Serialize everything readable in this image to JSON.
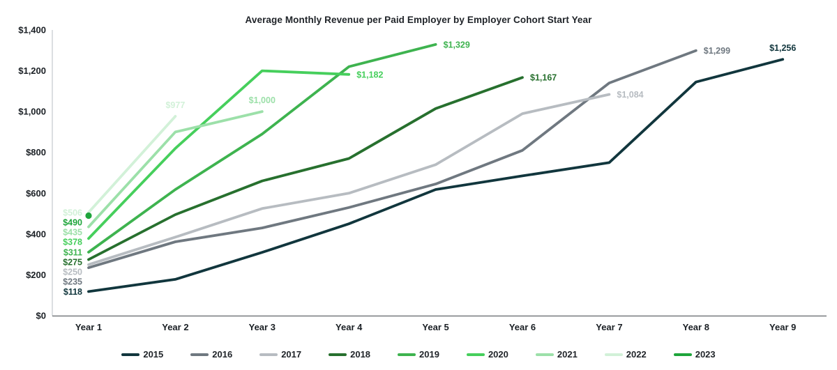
{
  "chart_data": {
    "type": "line",
    "title": "Average Monthly Revenue per Paid Employer by Employer Cohort Start Year",
    "categories": [
      "Year 1",
      "Year 2",
      "Year 3",
      "Year 4",
      "Year 5",
      "Year 6",
      "Year 7",
      "Year 8",
      "Year 9"
    ],
    "xlabel": "",
    "ylabel": "",
    "ylim": [
      0,
      1400
    ],
    "grid": "off",
    "legend_position": "bottom",
    "y_axis": {
      "tick_values": [
        0,
        200,
        400,
        600,
        800,
        1000,
        1200,
        1400
      ],
      "tick_labels": [
        "$0",
        "$200",
        "$400",
        "$600",
        "$800",
        "$1,000",
        "$1,200",
        "$1,400"
      ]
    },
    "series": [
      {
        "name": "2015",
        "color": "#11363d",
        "values": [
          118,
          178,
          310,
          450,
          618,
          685,
          750,
          1145,
          1256
        ],
        "start_label": "$118",
        "end_label": "$1,256",
        "end_label_position": "above"
      },
      {
        "name": "2016",
        "color": "#6f7880",
        "values": [
          235,
          362,
          430,
          530,
          645,
          810,
          1140,
          1299
        ],
        "start_label": "$235",
        "end_label": "$1,299",
        "end_label_position": "right"
      },
      {
        "name": "2017",
        "color": "#b7bcc1",
        "values": [
          250,
          385,
          525,
          600,
          740,
          990,
          1084
        ],
        "start_label": "$250",
        "end_label": "$1,084",
        "end_label_position": "right"
      },
      {
        "name": "2018",
        "color": "#27702e",
        "values": [
          275,
          495,
          660,
          770,
          1015,
          1167
        ],
        "start_label": "$275",
        "end_label": "$1,167",
        "end_label_position": "right"
      },
      {
        "name": "2019",
        "color": "#3eb34f",
        "values": [
          311,
          618,
          890,
          1220,
          1329
        ],
        "start_label": "$311",
        "end_label": "$1,329",
        "end_label_position": "right"
      },
      {
        "name": "2020",
        "color": "#46cf5c",
        "values": [
          378,
          820,
          1200,
          1182
        ],
        "start_label": "$378",
        "end_label": "$1,182",
        "end_label_position": "right"
      },
      {
        "name": "2021",
        "color": "#9ce0a9",
        "values": [
          435,
          900,
          1000
        ],
        "start_label": "$435",
        "end_label": "$1,000",
        "end_label_position": "above"
      },
      {
        "name": "2022",
        "color": "#d2f1d8",
        "values": [
          506,
          977
        ],
        "start_label": "$506",
        "end_label": "$977",
        "end_label_position": "above"
      },
      {
        "name": "2023",
        "color": "#1ea53b",
        "values": [
          490
        ],
        "start_label": "$490",
        "end_label": null,
        "marker": "dot"
      }
    ]
  }
}
